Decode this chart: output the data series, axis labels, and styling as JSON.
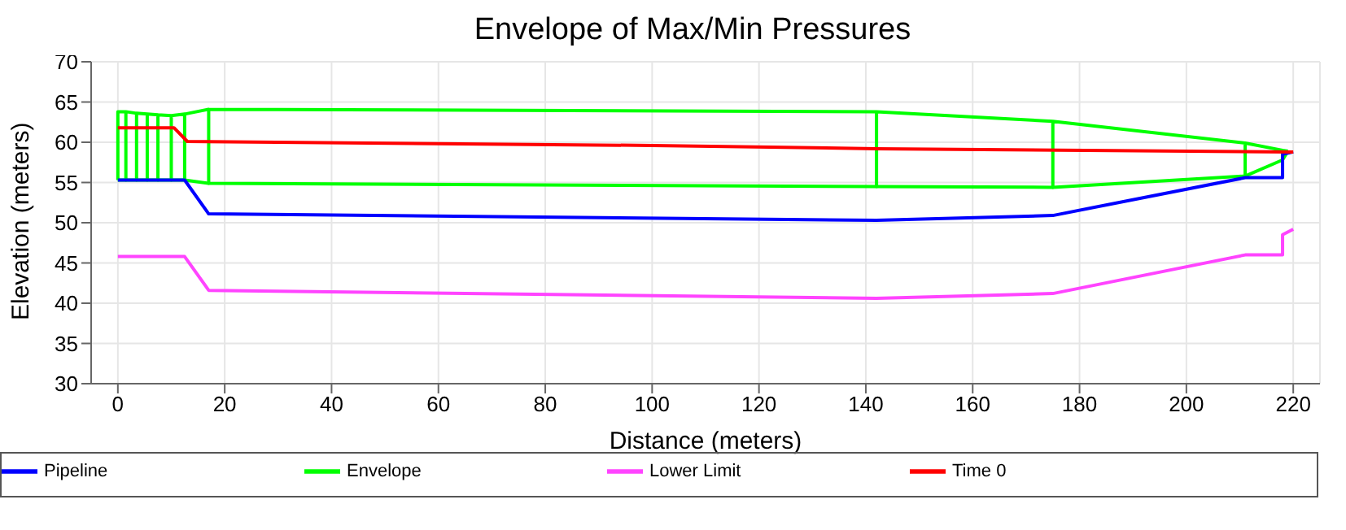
{
  "chart_data": {
    "type": "line",
    "title": "Envelope of Max/Min Pressures",
    "xlabel": "Distance (meters)",
    "ylabel": "Elevation (meters)",
    "xlim": [
      -5,
      225
    ],
    "xticks": [
      0,
      20,
      40,
      60,
      80,
      100,
      120,
      140,
      160,
      180,
      200,
      220
    ],
    "ylim": [
      30,
      70
    ],
    "yticks": [
      30,
      35,
      40,
      45,
      50,
      55,
      60,
      65,
      70
    ],
    "grid": true,
    "legend": "bottom",
    "marker": "none",
    "line_style": "solid",
    "series": [
      {
        "name": "Pipeline",
        "color": "#0000ff",
        "x": [
          0,
          12.5,
          17,
          142,
          175,
          211,
          218,
          218,
          220
        ],
        "values": [
          55.3,
          55.3,
          51.1,
          50.3,
          50.9,
          55.6,
          55.6,
          58.5,
          58.8
        ]
      },
      {
        "name": "Envelope",
        "color": "#00ff00",
        "x": [
          0,
          0,
          1.5,
          1.5,
          1.5,
          3.5,
          3.5,
          3.5,
          5.5,
          5.5,
          5.5,
          7.5,
          7.5,
          7.5,
          10,
          10,
          10,
          12.5,
          12.5,
          12.5,
          17,
          17,
          17,
          142,
          142,
          142,
          175,
          175,
          175,
          211,
          211,
          211,
          218,
          218,
          218,
          219
        ],
        "values": [
          55.3,
          63.8,
          63.8,
          55.3,
          63.8,
          63.6,
          55.3,
          63.6,
          63.5,
          55.3,
          63.5,
          63.4,
          55.3,
          63.4,
          63.3,
          55.3,
          63.3,
          63.5,
          55.3,
          63.5,
          64.1,
          54.9,
          64.1,
          63.8,
          54.5,
          63.8,
          62.6,
          54.4,
          62.6,
          59.9,
          55.8,
          59.9,
          59.0,
          57.8,
          59.0,
          58.9
        ]
      },
      {
        "color": "#00ff00",
        "x": [
          0,
          12.5,
          17,
          142,
          175,
          211,
          218,
          219
        ],
        "values": [
          55.3,
          55.3,
          54.9,
          54.5,
          54.4,
          55.8,
          57.8,
          58.9
        ]
      },
      {
        "name": "Lower Limit",
        "color": "#ff44ff",
        "x": [
          0,
          12.5,
          17,
          142,
          175,
          211,
          218,
          218,
          220
        ],
        "values": [
          45.8,
          45.8,
          41.6,
          40.6,
          41.2,
          46.0,
          46.0,
          48.5,
          49.2
        ]
      },
      {
        "name": "Time 0",
        "color": "#ff0000",
        "x": [
          0,
          10.5,
          13,
          100,
          142,
          220
        ],
        "values": [
          61.8,
          61.8,
          60.1,
          59.6,
          59.2,
          58.8
        ]
      }
    ]
  }
}
